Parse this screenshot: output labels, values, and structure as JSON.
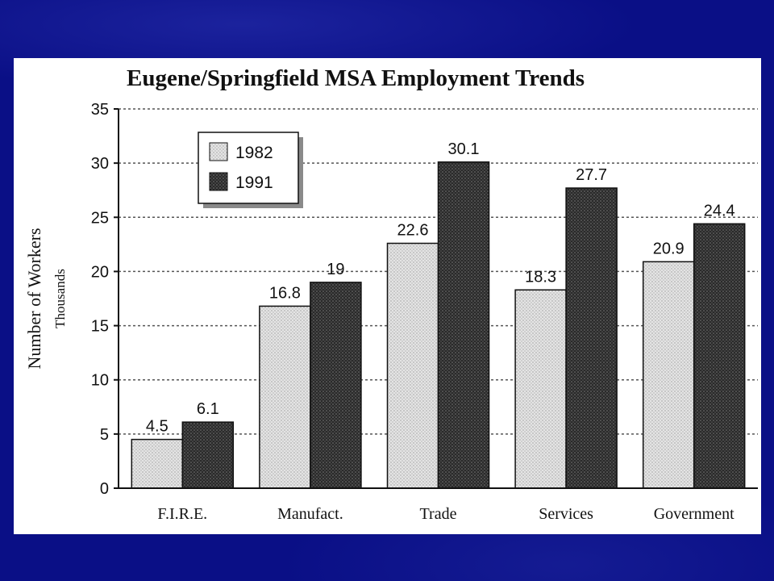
{
  "chart_data": {
    "type": "bar",
    "title": "Eugene/Springfield MSA Employment Trends",
    "ylabel": "Number of Workers",
    "ylabel_sub": "Thousands",
    "xlabel": "",
    "categories": [
      "F.I.R.E.",
      "Manufact.",
      "Trade",
      "Services",
      "Government"
    ],
    "series": [
      {
        "name": "1982",
        "values": [
          4.5,
          16.8,
          22.6,
          18.3,
          20.9
        ],
        "labels": [
          "4.5",
          "16.8",
          "22.6",
          "18.3",
          "20.9"
        ],
        "color": "#d8d8d8"
      },
      {
        "name": "1991",
        "values": [
          6.1,
          19,
          30.1,
          27.7,
          24.4
        ],
        "labels": [
          "6.1",
          "19",
          "30.1",
          "27.7",
          "24.4"
        ],
        "color": "#3a3a3a"
      }
    ],
    "ylim": [
      0,
      35
    ],
    "yticks": [
      "0",
      "5",
      "10",
      "15",
      "20",
      "25",
      "30",
      "35"
    ],
    "grid": true,
    "legend_position": "top-left"
  }
}
